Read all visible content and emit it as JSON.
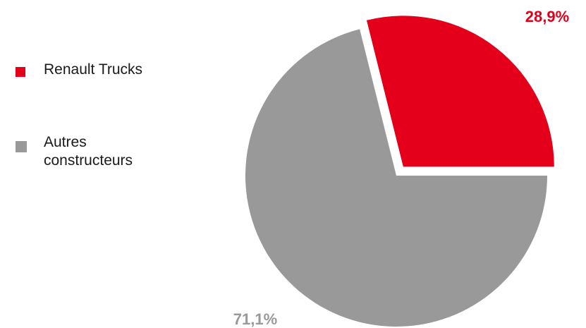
{
  "chart_data": {
    "type": "pie",
    "title": "",
    "legend_position": "left",
    "slices": [
      {
        "label": "Renault Trucks",
        "value": 28.9,
        "value_label": "28,9%",
        "color": "#e4001b",
        "exploded": true
      },
      {
        "label": "Autres\nconstructeurs",
        "value": 71.1,
        "value_label": "71,1%",
        "color": "#999999",
        "exploded": false
      }
    ]
  }
}
